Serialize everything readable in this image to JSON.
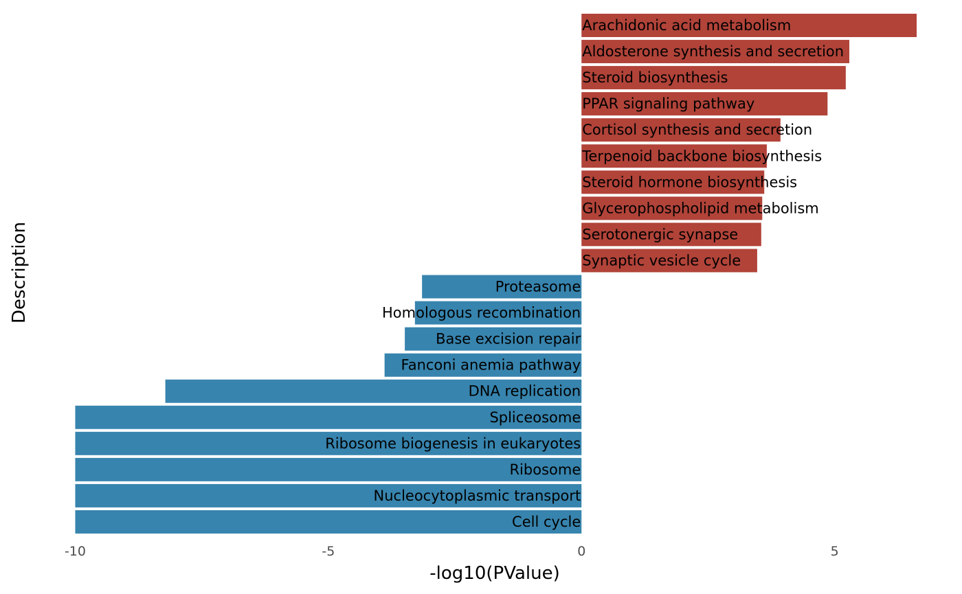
{
  "chart_data": {
    "type": "bar",
    "orientation": "horizontal",
    "xlabel": "-log10(PValue)",
    "ylabel": "Description",
    "xlim": [
      -10.4,
      7.0
    ],
    "xticks": [
      -10,
      -5,
      0,
      5
    ],
    "grid": false,
    "legend": "none",
    "colors": {
      "positive": "#b14339",
      "negative": "#3784ae"
    },
    "categories": [
      "Arachidonic acid metabolism",
      "Aldosterone synthesis and secretion",
      "Steroid biosynthesis",
      "PPAR signaling pathway",
      "Cortisol synthesis and secretion",
      "Terpenoid backbone biosynthesis",
      "Steroid hormone biosynthesis",
      "Glycerophospholipid metabolism",
      "Serotonergic synapse",
      "Synaptic vesicle cycle",
      "Proteasome",
      "Homologous recombination",
      "Base excision repair",
      "Fanconi anemia pathway",
      "DNA replication",
      "Spliceosome",
      "Ribosome biogenesis in eukaryotes",
      "Ribosome",
      "Nucleocytoplasmic transport",
      "Cell cycle"
    ],
    "values": [
      6.62,
      5.29,
      5.22,
      4.86,
      3.93,
      3.66,
      3.61,
      3.57,
      3.55,
      3.47,
      -3.15,
      -3.29,
      -3.49,
      -3.89,
      -8.22,
      -10,
      -10,
      -10,
      -10,
      -10
    ]
  }
}
